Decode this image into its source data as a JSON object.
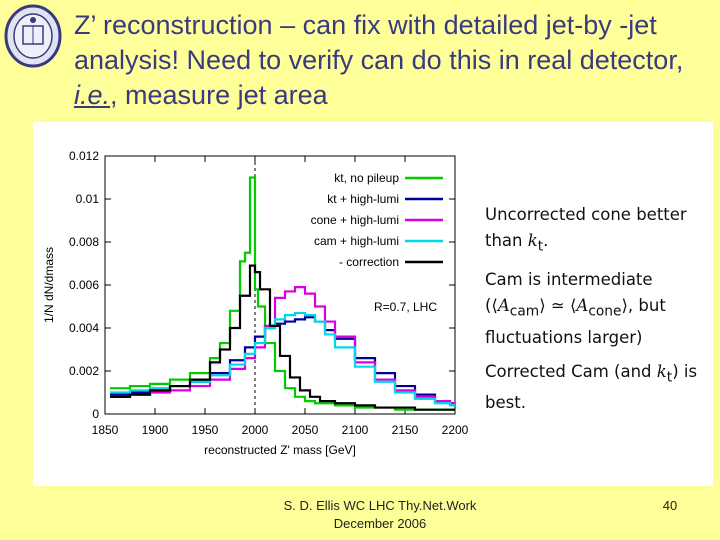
{
  "slide": {
    "title_part1": "Z’ reconstruction – can fix with detailed jet-by -jet analysis!  Need to verify can do this in real detector, ",
    "title_ie": "i.e.",
    "title_part2": ", measure jet area",
    "footer_line1": "S. D. Ellis   WC LHC Thy.Net.Work",
    "footer_line2": "December 2006",
    "page_number": "40",
    "background_color": "#ffff99",
    "title_color": "#3a3a80"
  },
  "notes": {
    "line1_a": "Uncorrected cone better than ",
    "line1_b": "k",
    "line1_sub": "t",
    "line1_c": ".",
    "line2_a": "Cam    is    intermediate (⟨",
    "line2_b": "A",
    "line2_sub1": "cam",
    "line2_c": "⟩ ≃ ⟨",
    "line2_d": "A",
    "line2_sub2": "cone",
    "line2_e": "⟩,  but fluctuations larger)",
    "line3_a": "Corrected Cam (and ",
    "line3_b": "k",
    "line3_sub": "t",
    "line3_c": ") is best."
  },
  "chart_data": {
    "type": "line",
    "xlabel": "reconstructed Z' mass [GeV]",
    "ylabel": "1/N dN/dmass",
    "xlim": [
      1850,
      2200
    ],
    "ylim": [
      0,
      0.012
    ],
    "xticks": [
      1850,
      1900,
      1950,
      2000,
      2050,
      2100,
      2150,
      2200
    ],
    "yticks": [
      0,
      0.002,
      0.004,
      0.006,
      0.008,
      0.01,
      0.012
    ],
    "ytick_labels": [
      "0",
      "0.002",
      "0.004",
      "0.006",
      "0.008",
      "0.01",
      "0.012"
    ],
    "annotation": "R=0.7, LHC",
    "reference_line_x": 2000,
    "legend_position": "top-right",
    "series": [
      {
        "name": "kt, no pileup",
        "color": "#00cc00",
        "x": [
          1855,
          1875,
          1895,
          1915,
          1935,
          1955,
          1965,
          1975,
          1985,
          1990,
          1995,
          1998,
          2000,
          2003,
          2010,
          2020,
          2030,
          2040,
          2050,
          2060,
          2080,
          2100,
          2120,
          2140,
          2160,
          2180,
          2195
        ],
        "y": [
          0.0012,
          0.0013,
          0.0014,
          0.0016,
          0.0019,
          0.0026,
          0.0033,
          0.0048,
          0.0071,
          0.0075,
          0.011,
          0.011,
          0.0058,
          0.005,
          0.0033,
          0.002,
          0.0012,
          0.0008,
          0.0006,
          0.0005,
          0.0004,
          0.0003,
          0.0003,
          0.0002,
          0.0002,
          0.0002,
          0.0002
        ]
      },
      {
        "name": "kt + high-lumi",
        "color": "#000099",
        "x": [
          1855,
          1875,
          1895,
          1915,
          1935,
          1955,
          1975,
          1990,
          2000,
          2010,
          2020,
          2030,
          2040,
          2050,
          2060,
          2070,
          2080,
          2100,
          2120,
          2140,
          2160,
          2180,
          2195
        ],
        "y": [
          0.0009,
          0.001,
          0.0011,
          0.0013,
          0.0015,
          0.0019,
          0.0025,
          0.0031,
          0.0036,
          0.004,
          0.0042,
          0.0043,
          0.0044,
          0.0045,
          0.0043,
          0.0039,
          0.0035,
          0.0026,
          0.0019,
          0.0013,
          0.0009,
          0.0006,
          0.0005
        ]
      },
      {
        "name": "cone + high-lumi",
        "color": "#dd00dd",
        "x": [
          1855,
          1875,
          1895,
          1915,
          1935,
          1955,
          1975,
          1990,
          2000,
          2010,
          2020,
          2030,
          2040,
          2050,
          2060,
          2070,
          2080,
          2100,
          2120,
          2140,
          2160,
          2180,
          2195
        ],
        "y": [
          0.0008,
          0.0009,
          0.001,
          0.0011,
          0.0013,
          0.0016,
          0.0021,
          0.0026,
          0.0031,
          0.0041,
          0.0054,
          0.0057,
          0.0059,
          0.0056,
          0.005,
          0.0043,
          0.0036,
          0.0024,
          0.0016,
          0.0011,
          0.0008,
          0.0006,
          0.0005
        ]
      },
      {
        "name": "cam + high-lumi",
        "color": "#00d8e8",
        "x": [
          1855,
          1875,
          1895,
          1915,
          1935,
          1955,
          1975,
          1990,
          2000,
          2010,
          2020,
          2030,
          2040,
          2050,
          2060,
          2070,
          2080,
          2100,
          2120,
          2140,
          2160,
          2180,
          2195
        ],
        "y": [
          0.001,
          0.0011,
          0.0012,
          0.0013,
          0.0015,
          0.0018,
          0.0023,
          0.0028,
          0.0033,
          0.004,
          0.0044,
          0.0046,
          0.0047,
          0.0046,
          0.0043,
          0.0037,
          0.0031,
          0.0022,
          0.0015,
          0.001,
          0.0007,
          0.0005,
          0.0004
        ]
      },
      {
        "name": "- correction",
        "color": "#000000",
        "x": [
          1855,
          1875,
          1895,
          1915,
          1935,
          1955,
          1965,
          1975,
          1985,
          1995,
          2000,
          2005,
          2015,
          2025,
          2035,
          2045,
          2055,
          2065,
          2080,
          2100,
          2120,
          2140,
          2160,
          2180,
          2195
        ],
        "y": [
          0.0008,
          0.0009,
          0.0011,
          0.0013,
          0.0016,
          0.0024,
          0.003,
          0.004,
          0.0055,
          0.0069,
          0.0066,
          0.0058,
          0.0041,
          0.0027,
          0.0017,
          0.0011,
          0.0008,
          0.0006,
          0.0005,
          0.0004,
          0.0003,
          0.0003,
          0.0002,
          0.0002,
          0.0002
        ]
      }
    ]
  }
}
